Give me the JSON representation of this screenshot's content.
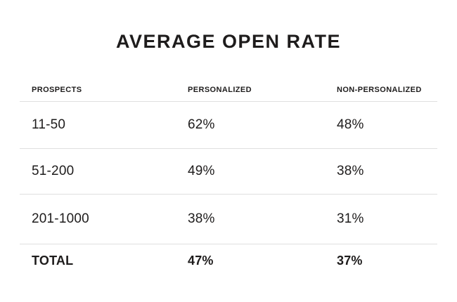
{
  "title": "AVERAGE OPEN RATE",
  "table": {
    "headers": [
      "PROSPECTS",
      "PERSONALIZED",
      "NON-PERSONALIZED"
    ],
    "rows": [
      [
        "11-50",
        "62%",
        "48%"
      ],
      [
        "51-200",
        "49%",
        "38%"
      ],
      [
        "201-1000",
        "38%",
        "31%"
      ]
    ],
    "total_row": [
      "TOTAL",
      "47%",
      "37%"
    ]
  },
  "colors": {
    "text": "#1e1c1c",
    "divider": "#dfdfdf",
    "background": "#ffffff"
  },
  "chart_data": {
    "type": "table",
    "title": "AVERAGE OPEN RATE",
    "columns": [
      "PROSPECTS",
      "PERSONALIZED",
      "NON-PERSONALIZED"
    ],
    "categories": [
      "11-50",
      "51-200",
      "201-1000",
      "TOTAL"
    ],
    "series": [
      {
        "name": "PERSONALIZED",
        "values": [
          62,
          49,
          38,
          47
        ],
        "unit": "%"
      },
      {
        "name": "NON-PERSONALIZED",
        "values": [
          48,
          38,
          31,
          37
        ],
        "unit": "%"
      }
    ],
    "rows": [
      [
        "11-50",
        "62%",
        "48%"
      ],
      [
        "51-200",
        "49%",
        "38%"
      ],
      [
        "201-1000",
        "38%",
        "31%"
      ],
      [
        "TOTAL",
        "47%",
        "37%"
      ]
    ],
    "layout_hints": {
      "grid": "horizontal dividers only",
      "alignment": "left",
      "total_row_bold": true
    }
  }
}
